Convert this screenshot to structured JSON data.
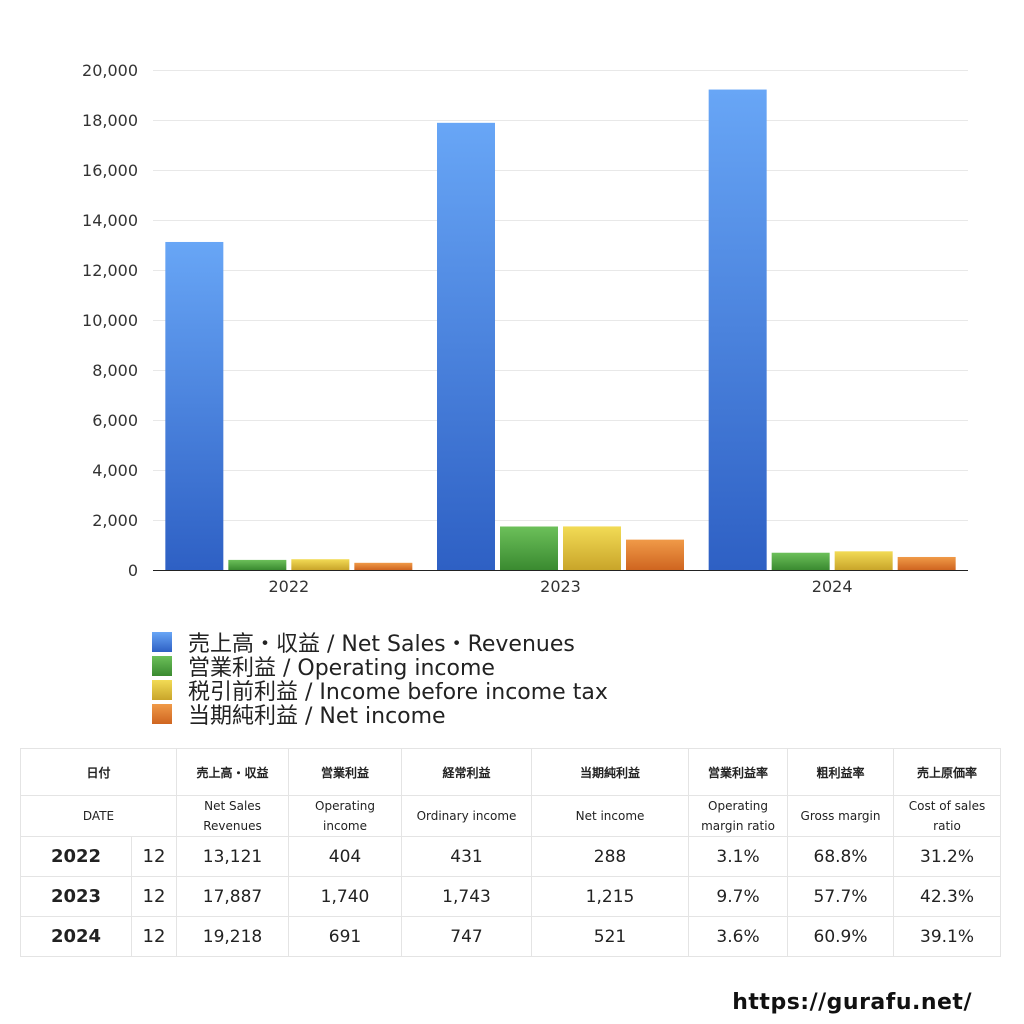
{
  "chart_data": {
    "type": "bar",
    "categories": [
      "2022",
      "2023",
      "2024"
    ],
    "series": [
      {
        "name": "売上高・収益 / Net Sales・Revenues",
        "values": [
          13121,
          17887,
          19218
        ],
        "color": "#3f7fe0"
      },
      {
        "name": "営業利益 / Operating income",
        "values": [
          404,
          1740,
          691
        ],
        "color": "#4ea43f"
      },
      {
        "name": "税引前利益 / Income before income tax",
        "values": [
          431,
          1743,
          747
        ],
        "color": "#e3c53a"
      },
      {
        "name": "当期純利益 / Net income",
        "values": [
          288,
          1215,
          521
        ],
        "color": "#e07a2e"
      }
    ],
    "yticks": [
      "0",
      "2,000",
      "4,000",
      "6,000",
      "8,000",
      "10,000",
      "12,000",
      "14,000",
      "16,000",
      "18,000",
      "20,000"
    ],
    "ylim": [
      0,
      20000
    ],
    "grid": true,
    "legend": "bottom-left"
  },
  "table": {
    "headers_ja": [
      "日付",
      "売上高・収益",
      "営業利益",
      "経常利益",
      "当期純利益",
      "営業利益率",
      "粗利益率",
      "売上原価率"
    ],
    "headers_en": [
      [
        "DATE"
      ],
      [
        "Net Sales",
        "Revenues"
      ],
      [
        "Operating",
        "income"
      ],
      [
        "Ordinary income"
      ],
      [
        "Net income"
      ],
      [
        "Operating",
        "margin ratio"
      ],
      [
        "Gross margin"
      ],
      [
        "Cost of sales",
        "ratio"
      ]
    ],
    "rows": [
      {
        "year": "2022",
        "month": "12",
        "values": [
          "13,121",
          "404",
          "431",
          "288",
          "3.1%",
          "68.8%",
          "31.2%"
        ]
      },
      {
        "year": "2023",
        "month": "12",
        "values": [
          "17,887",
          "1,740",
          "1,743",
          "1,215",
          "9.7%",
          "57.7%",
          "42.3%"
        ]
      },
      {
        "year": "2024",
        "month": "12",
        "values": [
          "19,218",
          "691",
          "747",
          "521",
          "3.6%",
          "60.9%",
          "39.1%"
        ]
      }
    ]
  },
  "footer": {
    "url": "https://gurafu.net/"
  }
}
